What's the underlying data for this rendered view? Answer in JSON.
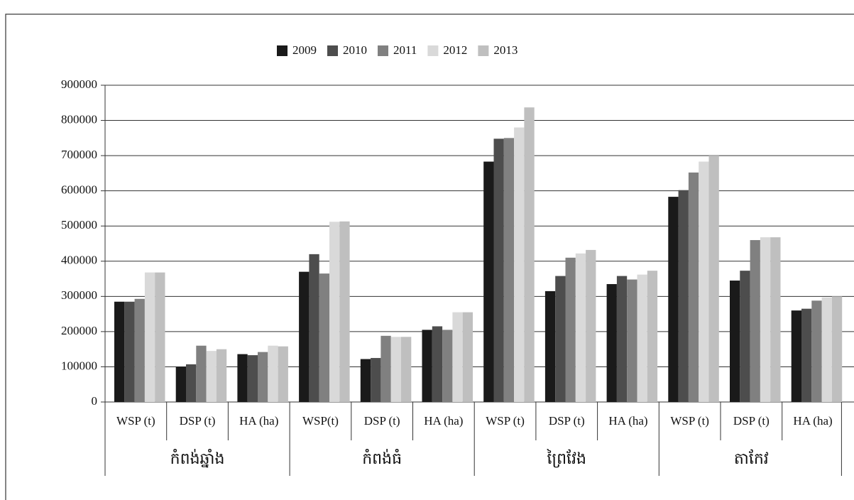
{
  "chart_data": {
    "type": "bar",
    "categories": [
      "WSP (t)",
      "DSP (t)",
      "HA (ha)",
      "WSP(t)",
      "DSP (t)",
      "HA (ha)",
      "WSP (t)",
      "DSP (t)",
      "HA (ha)",
      "WSP (t)",
      "DSP (t)",
      "HA (ha)"
    ],
    "category_groups": [
      "កំពង់ឆ្នាំង",
      "កំពង់ធំ",
      "ព្រៃវែង",
      "តាកែវ"
    ],
    "series": [
      {
        "name": "2009",
        "color": "#1a1a1a",
        "values": [
          285000,
          100000,
          136000,
          370000,
          122000,
          205000,
          683000,
          315000,
          335000,
          583000,
          345000,
          260000
        ]
      },
      {
        "name": "2010",
        "color": "#4d4d4d",
        "values": [
          285000,
          107000,
          133000,
          420000,
          125000,
          215000,
          748000,
          358000,
          358000,
          602000,
          373000,
          265000
        ]
      },
      {
        "name": "2011",
        "color": "#808080",
        "values": [
          293000,
          160000,
          142000,
          365000,
          188000,
          205000,
          750000,
          410000,
          348000,
          652000,
          460000,
          288000
        ]
      },
      {
        "name": "2012",
        "color": "#d9d9d9",
        "values": [
          368000,
          145000,
          160000,
          512000,
          185000,
          255000,
          780000,
          422000,
          362000,
          683000,
          468000,
          297000
        ]
      },
      {
        "name": "2013",
        "color": "#bfbfbf",
        "values": [
          368000,
          150000,
          158000,
          513000,
          185000,
          255000,
          837000,
          432000,
          373000,
          700000,
          468000,
          300000
        ]
      }
    ],
    "ylim": [
      0,
      900000
    ],
    "yticks": [
      0,
      100000,
      200000,
      300000,
      400000,
      500000,
      600000,
      700000,
      800000,
      900000
    ],
    "grid": true,
    "legend": "top"
  }
}
